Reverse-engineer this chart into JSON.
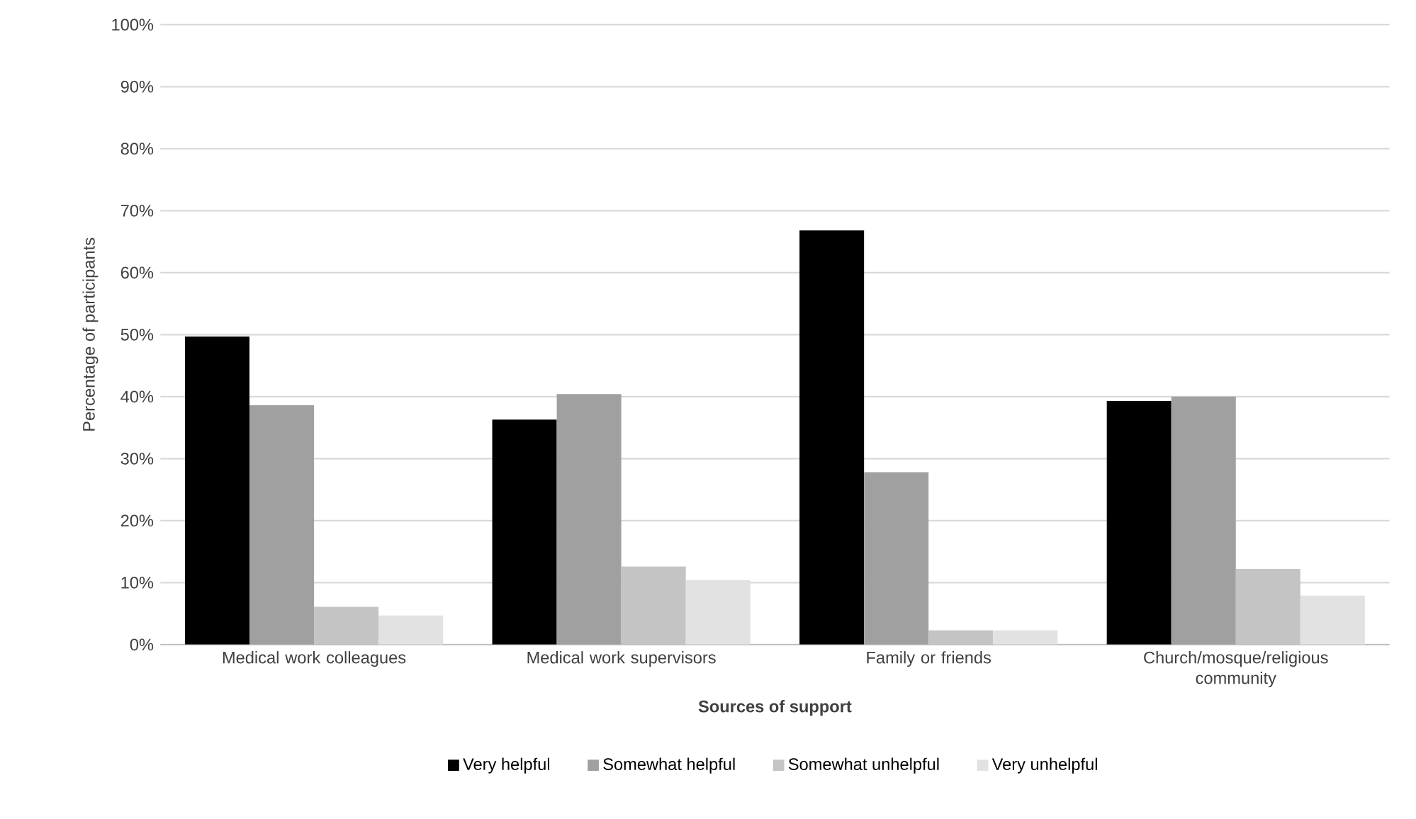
{
  "chart_data": {
    "type": "bar",
    "xlabel": "Sources of support",
    "ylabel": "Percentage of participants",
    "categories": [
      "Medical work colleagues",
      "Medical work supervisors",
      "Family or friends",
      "Church/mosque/religious community"
    ],
    "series": [
      {
        "name": "Very helpful",
        "color": "#000000",
        "values": [
          49.7,
          36.3,
          66.8,
          39.3
        ]
      },
      {
        "name": "Somewhat helpful",
        "color": "#a0a0a0",
        "values": [
          38.6,
          40.4,
          27.8,
          40.0
        ]
      },
      {
        "name": "Somewhat unhelpful",
        "color": "#c4c4c4",
        "values": [
          6.1,
          12.6,
          2.3,
          12.2
        ]
      },
      {
        "name": "Very unhelpful",
        "color": "#e2e2e2",
        "values": [
          4.7,
          10.4,
          2.3,
          7.9
        ]
      }
    ],
    "ylim": [
      0,
      100
    ],
    "yticks": [
      {
        "value": 0,
        "label": "0%"
      },
      {
        "value": 10,
        "label": "10%"
      },
      {
        "value": 20,
        "label": "20%"
      },
      {
        "value": 30,
        "label": "30%"
      },
      {
        "value": 40,
        "label": "40%"
      },
      {
        "value": 50,
        "label": "50%"
      },
      {
        "value": 60,
        "label": "60%"
      },
      {
        "value": 70,
        "label": "70%"
      },
      {
        "value": 80,
        "label": "80%"
      },
      {
        "value": 90,
        "label": "90%"
      },
      {
        "value": 100,
        "label": "100%"
      }
    ],
    "grid": "y",
    "legend": "bottom"
  }
}
